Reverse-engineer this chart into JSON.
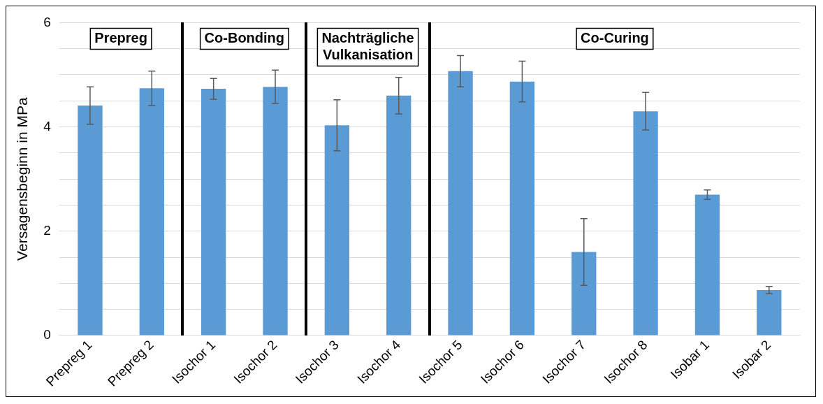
{
  "chart_data": {
    "type": "bar",
    "ylabel": "Versagensbeginn in MPa",
    "categories": [
      "Prepreg 1",
      "Prepreg 2",
      "Isochor 1",
      "Isochor 2",
      "Isochor 3",
      "Isochor 4",
      "Isochor 5",
      "Isochor 6",
      "Isochor 7",
      "Isochor 8",
      "Isobar 1",
      "Isobar 2"
    ],
    "values": [
      4.41,
      4.74,
      4.73,
      4.77,
      4.03,
      4.6,
      5.07,
      4.87,
      1.6,
      4.3,
      2.7,
      0.87
    ],
    "errors": [
      0.36,
      0.33,
      0.2,
      0.32,
      0.49,
      0.35,
      0.3,
      0.39,
      0.64,
      0.36,
      0.09,
      0.07
    ],
    "color": "#5b9bd5",
    "ylim": [
      0,
      6
    ],
    "yticks": [
      0,
      {
        "value": 0.5,
        "label": null
      },
      {
        "value": 1,
        "label": null
      },
      {
        "value": 1.5,
        "label": null
      },
      2,
      {
        "value": 2.5,
        "label": null
      },
      {
        "value": 3,
        "label": null
      },
      {
        "value": 3.5,
        "label": null
      },
      4,
      {
        "value": 4.5,
        "label": null
      },
      {
        "value": 5,
        "label": null
      },
      {
        "value": 5.5,
        "label": null
      },
      6
    ],
    "grid": "y",
    "annotations": [
      "Prepreg",
      "Co-Bonding",
      "Nachträgliche Vulkanisation",
      "Co-Curing"
    ]
  }
}
